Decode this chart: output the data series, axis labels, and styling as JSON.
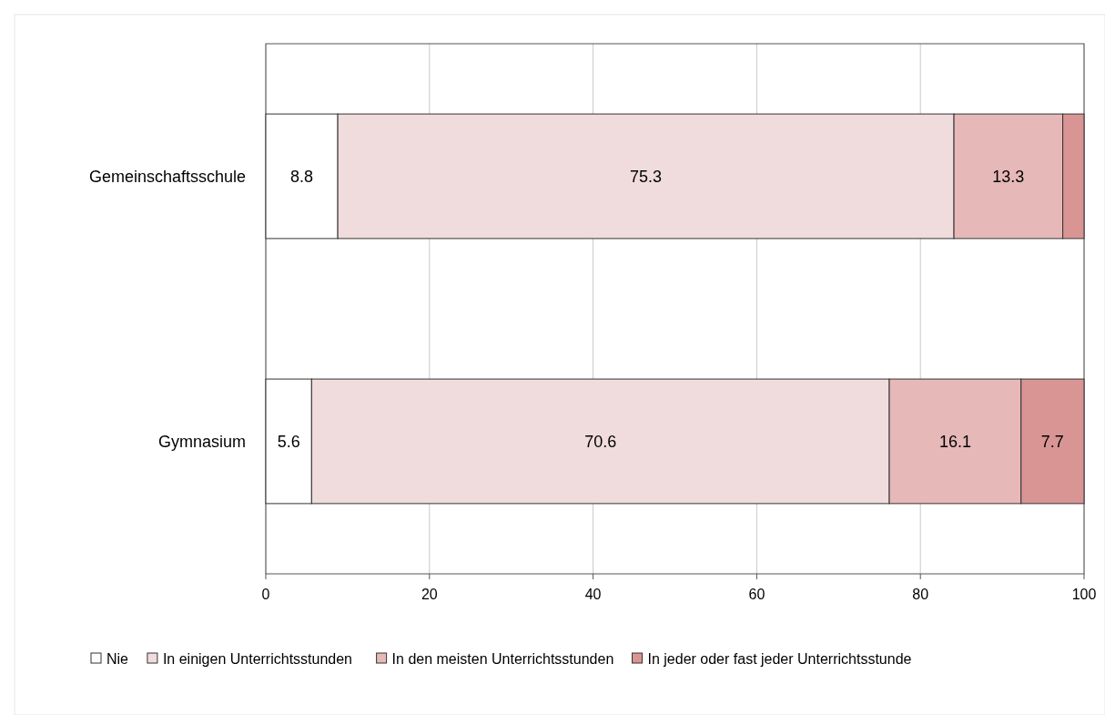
{
  "chart_data": {
    "type": "bar",
    "orientation": "horizontal",
    "stacked": true,
    "categories": [
      "Gemeinschaftsschule",
      "Gymnasium"
    ],
    "series": [
      {
        "name": "Nie",
        "color": "#ffffff",
        "values": [
          8.8,
          5.6
        ],
        "value_labels": [
          "8.8",
          "5.6"
        ]
      },
      {
        "name": "In einigen Unterrichtsstunden",
        "color": "#f0dcdc",
        "values": [
          75.3,
          70.6
        ],
        "value_labels": [
          "75.3",
          "70.6"
        ]
      },
      {
        "name": "In den meisten Unterrichtsstunden",
        "color": "#e6b8b8",
        "values": [
          13.3,
          16.1
        ],
        "value_labels": [
          "13.3",
          "16.1"
        ]
      },
      {
        "name": "In jeder oder fast jeder Unterrichtsstunde",
        "color": "#d99494",
        "values": [
          2.6,
          7.7
        ],
        "value_labels": [
          null,
          "7.7"
        ]
      }
    ],
    "xlim": [
      0,
      100
    ],
    "xticks": [
      0,
      20,
      40,
      60,
      80,
      100
    ],
    "grid": "x",
    "legend": "bottom"
  }
}
